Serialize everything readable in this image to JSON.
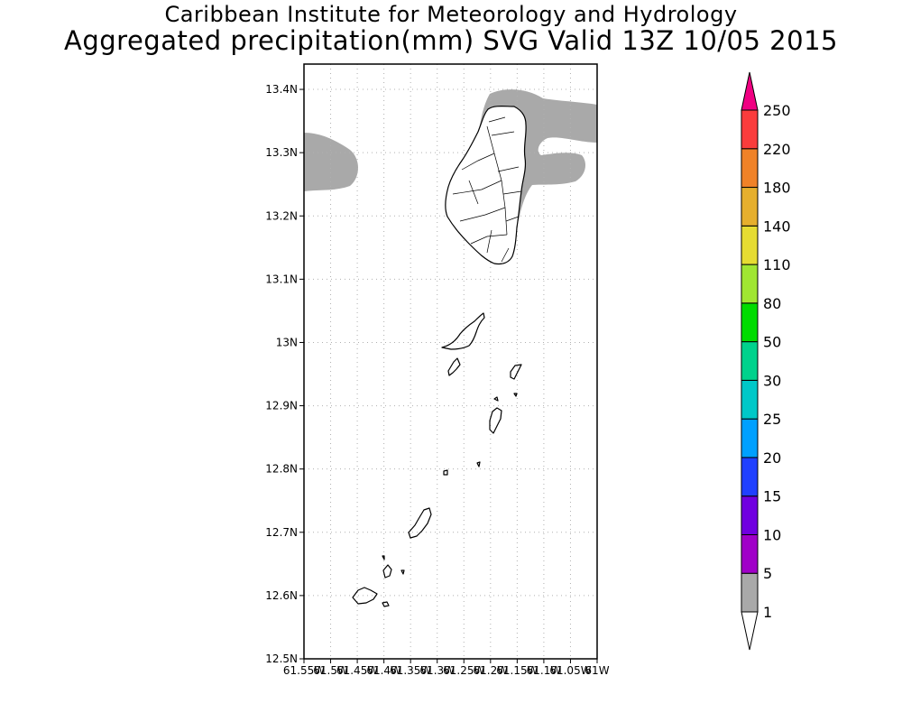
{
  "header": {
    "institution": "Caribbean Institute for Meteorology and Hydrology",
    "product": "Aggregated precipitation(mm) SVG Valid 13Z 10/05 2015"
  },
  "map": {
    "lat_ticks": [
      "13.4N",
      "13.3N",
      "13.2N",
      "13.1N",
      "13N",
      "12.9N",
      "12.8N",
      "12.7N",
      "12.6N",
      "12.5N"
    ],
    "lon_ticks": [
      "61.55W",
      "61.5W",
      "61.45W",
      "61.4W",
      "61.35W",
      "61.3W",
      "61.25W",
      "61.2W",
      "61.15W",
      "61.1W",
      "61.05W",
      "61W"
    ],
    "colors": {
      "frame": "#000000",
      "grid": "#b0b0b0",
      "precip_1_5": "#a9a9a9",
      "precip_5_10": "#a000c8",
      "coast": "#000000"
    }
  },
  "legend": {
    "levels": [
      "1",
      "5",
      "10",
      "15",
      "20",
      "25",
      "30",
      "50",
      "80",
      "110",
      "140",
      "180",
      "220",
      "250"
    ],
    "colors": [
      "#a9a9a9",
      "#a000c8",
      "#7000e0",
      "#2040ff",
      "#00a0ff",
      "#00c8c8",
      "#00d28c",
      "#00dc00",
      "#a0e632",
      "#e6dc32",
      "#e6af2d",
      "#f08228",
      "#fa3c3c",
      "#f00082"
    ]
  }
}
